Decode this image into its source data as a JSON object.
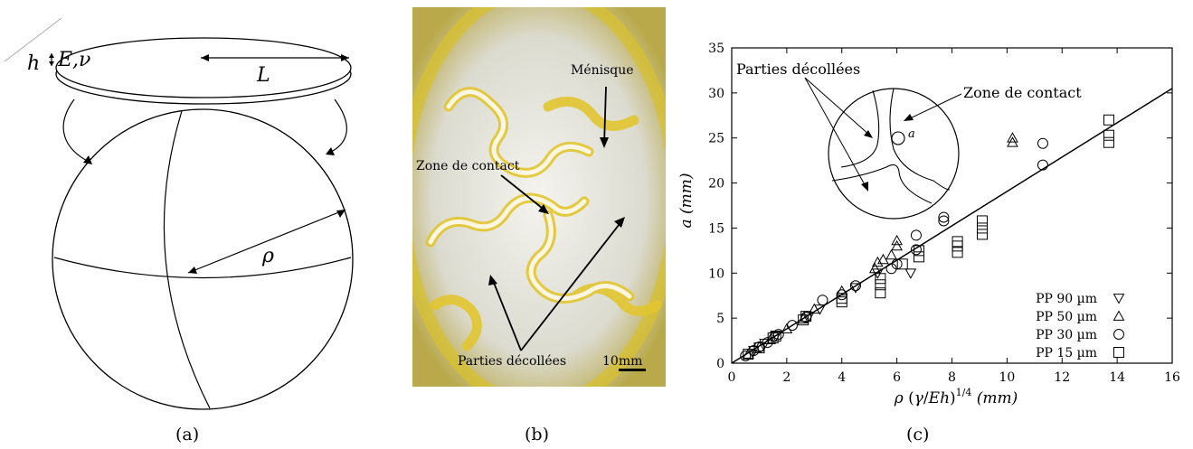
{
  "panel_a": {
    "caption": "(a)",
    "label_h": "h",
    "label_E_nu": "E,ν",
    "label_L": "L",
    "label_rho": "ρ"
  },
  "panel_b": {
    "caption": "(b)",
    "label_menisque": "Ménisque",
    "label_zone": "Zone de contact",
    "label_parties": "Parties décollées",
    "label_scale": "10mm"
  },
  "panel_c": {
    "caption": "(c)",
    "inset_parties": "Parties décollées",
    "inset_zone": "Zone de contact",
    "inset_a": "a"
  },
  "chart_data": {
    "type": "scatter",
    "xlabel": "ρ (γ/Eh)^1/4 (mm)",
    "ylabel": "a (mm)",
    "xlim": [
      0,
      16
    ],
    "ylim": [
      0,
      35
    ],
    "xticks": [
      "0",
      "2",
      "4",
      "6",
      "8",
      "10",
      "12",
      "14",
      "16"
    ],
    "yticks": [
      "0",
      "5",
      "10",
      "15",
      "20",
      "25",
      "30",
      "35"
    ],
    "legend_position": "bottom-right",
    "grid": false,
    "fit_line": {
      "x": [
        0,
        16
      ],
      "y": [
        0,
        30.5
      ]
    },
    "series": [
      {
        "name": "PP 90 µm",
        "marker": "triangle-down",
        "x": [
          0.8,
          1.2,
          1.6,
          2.8,
          3.2,
          4.5,
          5.3,
          6.5
        ],
        "y": [
          1.4,
          2.2,
          3.0,
          5.2,
          6.0,
          8.4,
          10.0,
          10.0
        ]
      },
      {
        "name": "PP 50 µm",
        "marker": "triangle-up",
        "x": [
          0.6,
          1.0,
          1.4,
          2.0,
          2.6,
          3.0,
          4.0,
          5.2,
          5.3,
          5.5,
          5.8,
          6.0,
          6.0,
          10.2,
          10.2
        ],
        "y": [
          1.0,
          1.8,
          2.6,
          3.8,
          4.9,
          6.0,
          8.0,
          10.5,
          11.2,
          11.5,
          12.0,
          13.0,
          13.6,
          24.5,
          25.0
        ]
      },
      {
        "name": "PP 30 µm",
        "marker": "circle",
        "x": [
          0.5,
          0.8,
          1.0,
          1.3,
          1.7,
          2.2,
          2.7,
          3.3,
          4.0,
          4.5,
          5.8,
          6.0,
          6.7,
          6.7,
          7.7,
          7.7,
          11.3,
          11.3
        ],
        "y": [
          0.8,
          1.4,
          1.8,
          2.3,
          3.2,
          4.2,
          5.1,
          7.0,
          7.6,
          8.6,
          10.5,
          11.0,
          12.6,
          14.2,
          15.8,
          16.2,
          22.0,
          24.4
        ]
      },
      {
        "name": "PP 15 µm",
        "marker": "square",
        "x": [
          0.6,
          1.0,
          1.5,
          1.6,
          2.6,
          2.7,
          4.0,
          4.0,
          5.4,
          5.4,
          5.4,
          6.2,
          6.8,
          6.8,
          8.2,
          8.2,
          8.2,
          9.1,
          9.1,
          9.1,
          13.7,
          13.7,
          13.7
        ],
        "y": [
          1.0,
          1.7,
          2.8,
          3.0,
          4.8,
          5.2,
          6.8,
          7.2,
          7.8,
          8.7,
          9.4,
          11.0,
          11.8,
          12.5,
          12.3,
          13.0,
          13.5,
          14.3,
          15.0,
          15.8,
          24.5,
          25.3,
          27.0
        ]
      }
    ]
  }
}
